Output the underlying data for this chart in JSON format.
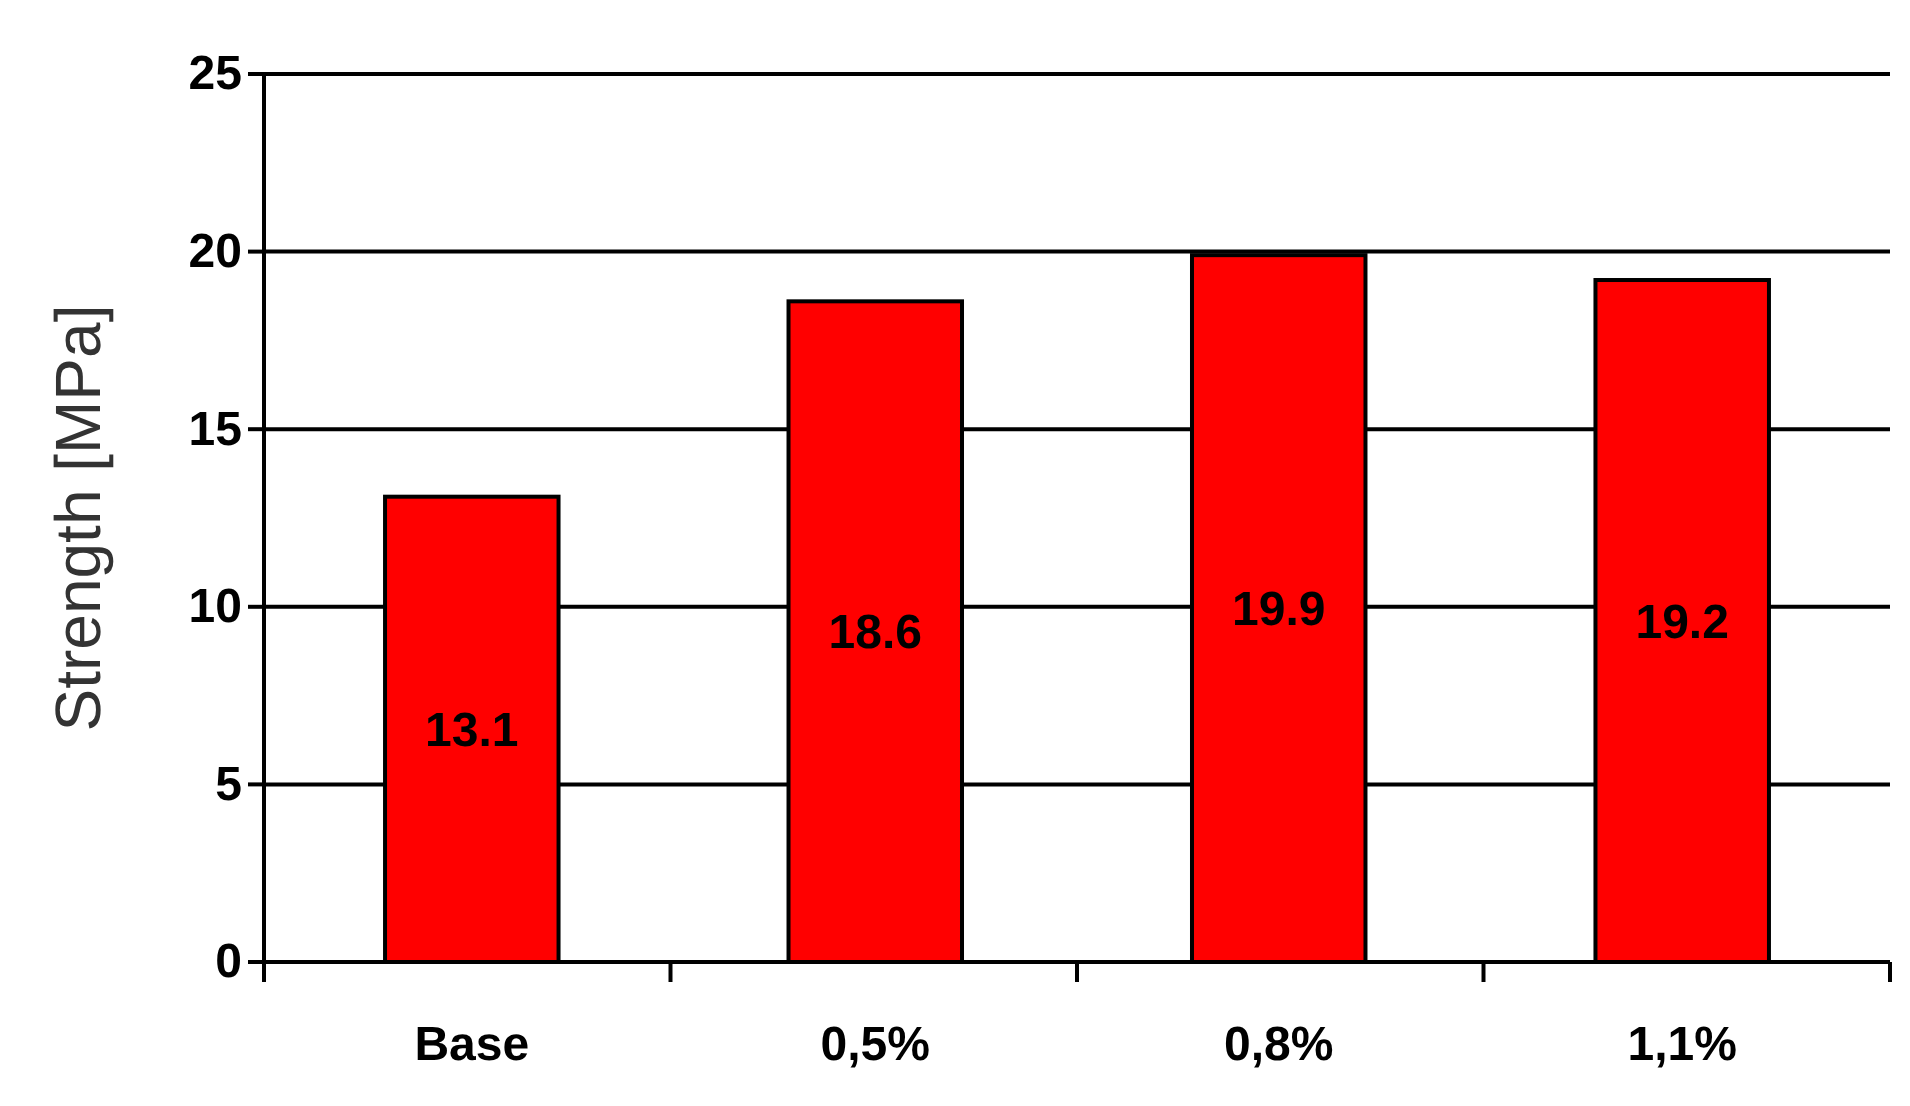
{
  "chart_data": {
    "type": "bar",
    "ylabel": "Strength [MPa]",
    "categories": [
      "Base",
      "0,5%",
      "0,8%",
      "1,1%"
    ],
    "values": [
      13.1,
      18.6,
      19.9,
      19.2
    ],
    "color": "#ff0000",
    "ylim": [
      0,
      25
    ],
    "yticks": [
      0,
      5,
      10,
      15,
      20,
      25
    ],
    "grid": "y",
    "data_labels": true
  }
}
